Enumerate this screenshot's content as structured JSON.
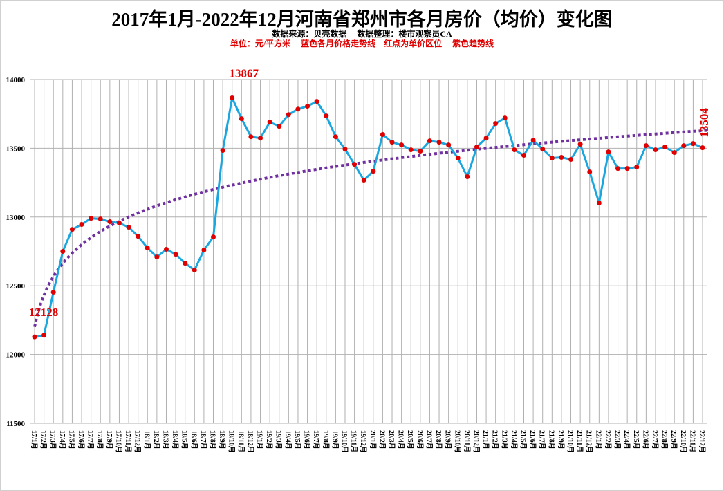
{
  "chart_data": {
    "type": "line",
    "title": "2017年1月-2022年12月河南省郑州市各月房价（均价）变化图",
    "subtitle": "数据来源：贝壳数据　 数据整理：楼市观察员CA",
    "note": "单位：元/平方米　 蓝色各月价格走势线　红点为单价区位　 紫色趋势线",
    "ylim": [
      11500,
      14000
    ],
    "yticks": [
      11500,
      12000,
      12500,
      13000,
      13500,
      14000
    ],
    "grid": {
      "horizontal": true,
      "vertical": true
    },
    "categories": [
      "17/1月",
      "17/2月",
      "17/3月",
      "17/4月",
      "17/5月",
      "17/6月",
      "17/7月",
      "17/8月",
      "17/9月",
      "17/10月",
      "17/11月",
      "17/12月",
      "18/1月",
      "18/2月",
      "18/3月",
      "18/4月",
      "18/5月",
      "18/6月",
      "18/7月",
      "18/8月",
      "18/9月",
      "18/10月",
      "18/11月",
      "18/12月",
      "19/1月",
      "19/2月",
      "19/3月",
      "19/4月",
      "19/5月",
      "19/6月",
      "19/7月",
      "19/8月",
      "19/9月",
      "19/10月",
      "19/11月",
      "19/12月",
      "20/1月",
      "20/2月",
      "20/3月",
      "20/4月",
      "20/5月",
      "20/6月",
      "20/7月",
      "20/8月",
      "20/9月",
      "20/10月",
      "20/11月",
      "20/12月",
      "21/1月",
      "21/2月",
      "21/3月",
      "21/4月",
      "21/5月",
      "21/6月",
      "21/7月",
      "21/8月",
      "21/9月",
      "21/10月",
      "21/11月",
      "21/12月",
      "22/1月",
      "22/2月",
      "22/3月",
      "22/4月",
      "22/5月",
      "22/6月",
      "22/7月",
      "22/8月",
      "22/9月",
      "22/10月",
      "22/11月",
      "22/12月"
    ],
    "values": [
      12128,
      12140,
      12453,
      12750,
      12910,
      12946,
      12991,
      12986,
      12966,
      12956,
      12926,
      12860,
      12775,
      12709,
      12765,
      12729,
      12664,
      12614,
      12760,
      12855,
      13484,
      13867,
      13715,
      13584,
      13574,
      13690,
      13660,
      13745,
      13785,
      13806,
      13841,
      13735,
      13584,
      13494,
      13383,
      13268,
      13333,
      13600,
      13544,
      13524,
      13489,
      13479,
      13554,
      13544,
      13524,
      13429,
      13293,
      13509,
      13574,
      13680,
      13720,
      13489,
      13449,
      13559,
      13494,
      13429,
      13434,
      13419,
      13529,
      13328,
      13102,
      13474,
      13353,
      13353,
      13363,
      13519,
      13489,
      13509,
      13469,
      13519,
      13534,
      13504
    ],
    "data_labels": [
      {
        "index": 0,
        "text": "12128"
      },
      {
        "index": 21,
        "text": "13867"
      },
      {
        "index": 71,
        "text": "13504"
      }
    ],
    "trendline": {
      "type": "logarithmic",
      "style": "dotted"
    },
    "colors": {
      "line": "#1aa7e0",
      "points": "#e00000",
      "trend": "#7030a0",
      "labels": "#e00000",
      "grid": "#b0b0b0"
    }
  }
}
